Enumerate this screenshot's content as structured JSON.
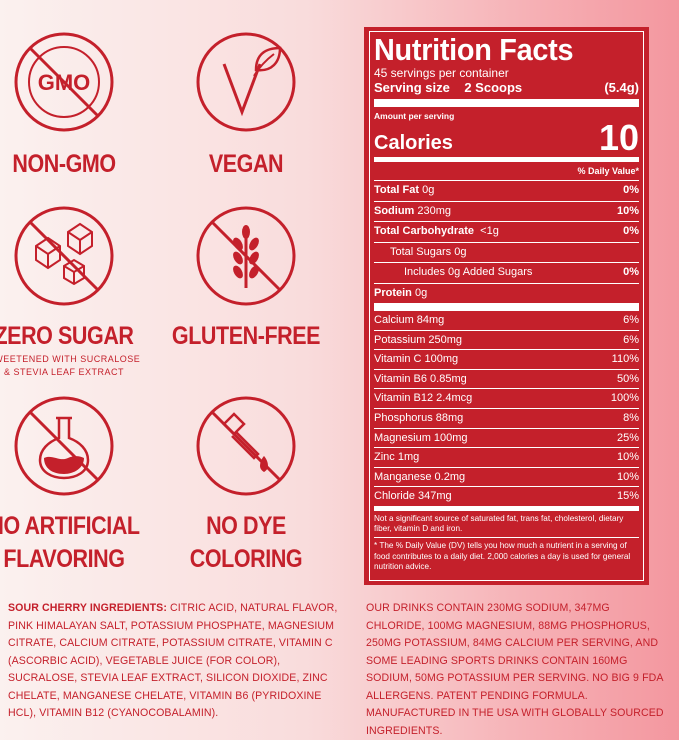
{
  "badges": {
    "non_gmo": {
      "icon_text": "GMO",
      "title": "NON-GMO"
    },
    "vegan": {
      "title": "VEGAN"
    },
    "zero_sugar": {
      "title": "ZERO SUGAR",
      "subtitle_1": "SWEETENED WITH SUCRALOSE",
      "subtitle_2": "& STEVIA LEAF EXTRACT"
    },
    "gluten_free": {
      "title": "GLUTEN-FREE"
    },
    "no_artificial": {
      "title_1": "NO ARTIFICIAL",
      "title_2": "FLAVORING"
    },
    "no_dye": {
      "title_1": "NO DYE",
      "title_2": "COLORING"
    }
  },
  "nutrition": {
    "title": "Nutrition Facts",
    "servings": "45 servings per container",
    "serving_size_label": "Serving size",
    "serving_size_value": "2 Scoops",
    "serving_size_grams": "(5.4g)",
    "amount_per_serving": "Amount per serving",
    "calories_label": "Calories",
    "calories_value": "10",
    "daily_value_header": "% Daily Value*",
    "macros": [
      {
        "name": "Total Fat",
        "amount": "0g",
        "dv": "0%"
      },
      {
        "name": "Sodium",
        "amount": "230mg",
        "dv": "10%"
      },
      {
        "name": "Total Carbohydrate",
        "amount": "<1g",
        "dv": "0%"
      },
      {
        "name": "Total Sugars 0g",
        "amount": "",
        "dv": ""
      },
      {
        "name": "Includes 0g Added Sugars",
        "amount": "",
        "dv": "0%"
      },
      {
        "name": "Protein",
        "amount": "0g",
        "dv": ""
      }
    ],
    "micros": [
      {
        "label": "Calcium 84mg",
        "dv": "6%"
      },
      {
        "label": "Potassium 250mg",
        "dv": "6%"
      },
      {
        "label": "Vitamin C 100mg",
        "dv": "110%"
      },
      {
        "label": "Vitamin B6 0.85mg",
        "dv": "50%"
      },
      {
        "label": "Vitamin B12 2.4mcg",
        "dv": "100%"
      },
      {
        "label": "Phosphorus 88mg",
        "dv": "8%"
      },
      {
        "label": "Magnesium 100mg",
        "dv": "25%"
      },
      {
        "label": "Zinc 1mg",
        "dv": "10%"
      },
      {
        "label": "Manganese 0.2mg",
        "dv": "10%"
      },
      {
        "label": "Chloride 347mg",
        "dv": "15%"
      }
    ],
    "note_1": "Not a significant source of saturated fat, trans fat, cholesterol, dietary fiber, vitamin D and iron.",
    "note_2": "* The % Daily Value (DV) tells you how much a nutrient in a serving of food contributes to a daily diet. 2,000 calories a day is used for general nutrition advice."
  },
  "ingredients": {
    "label": "SOUR CHERRY INGREDIENTS:",
    "text": "CITRIC ACID, NATURAL FLAVOR, PINK HIMALAYAN SALT, POTASSIUM PHOSPHATE, MAGNESIUM CITRATE, CALCIUM CITRATE, POTASSIUM CITRATE, VITAMIN C (ASCORBIC ACID), VEGETABLE JUICE (FOR COLOR), SUCRALOSE, STEVIA LEAF EXTRACT, SILICON DIOXIDE, ZINC CHELATE, MANGANESE CHELATE, VITAMIN B6 (PYRIDOXINE HCL), VITAMIN B12 (CYANOCOBALAMIN).",
    "claims": "OUR DRINKS CONTAIN 230MG SODIUM, 347MG CHLORIDE, 100MG MAGNESIUM, 88MG PHOSPHORUS, 250MG POTASSIUM, 84MG CALCIUM PER SERVING, AND SOME LEADING SPORTS DRINKS CONTAIN 160MG SODIUM, 50MG POTASSIUM PER SERVING. NO BIG 9 FDA ALLERGENS. PATENT PENDING FORMULA. MANUFACTURED IN THE USA WITH GLOBALLY SOURCED INGREDIENTS."
  },
  "colors": {
    "brand_red": "#c4202b",
    "background_light": "#fbf1ef",
    "background_pink": "#f3979f"
  }
}
